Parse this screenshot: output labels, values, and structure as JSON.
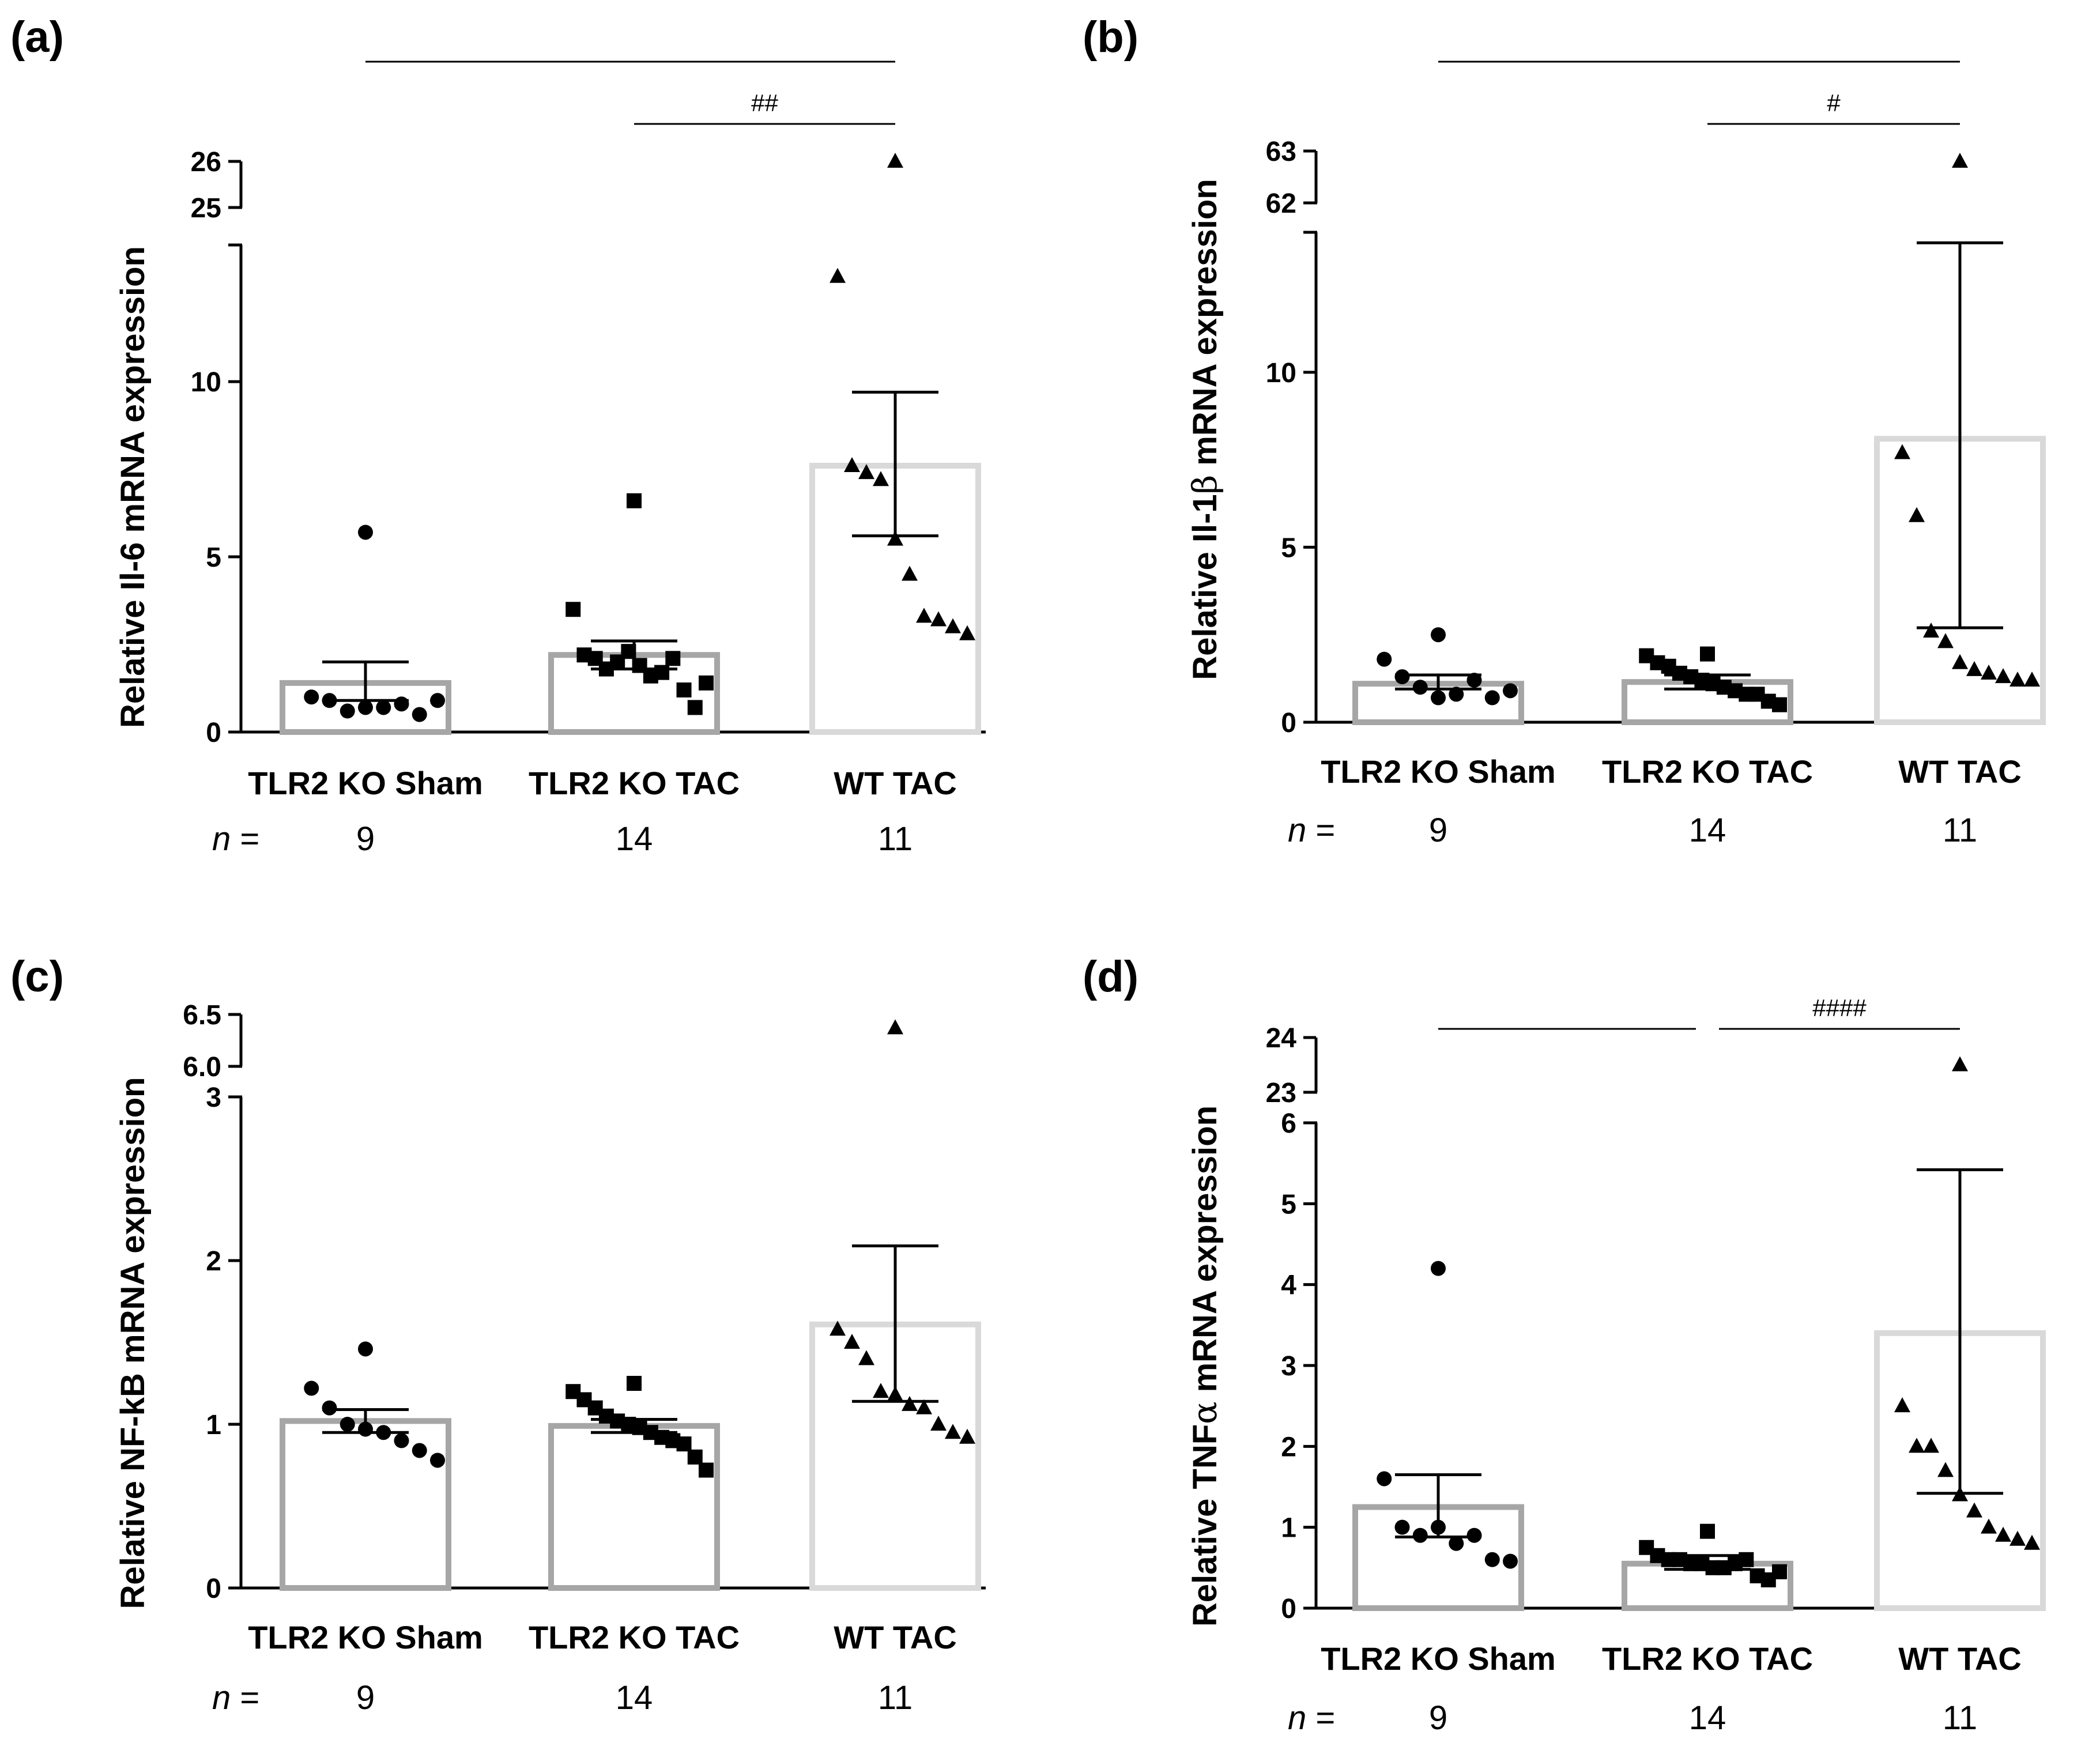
{
  "n_label": "n",
  "n_suffix": "=",
  "chart_data": [
    {
      "panel": "(a)",
      "type": "bar",
      "ylabel_parts": [
        {
          "t": "Relative Il-6 mRNA expression",
          "serif": false
        }
      ],
      "categories": [
        "TLR2 KO Sham",
        "TLR2 KO TAC",
        "WT TAC"
      ],
      "n": [
        "9",
        "14",
        "11"
      ],
      "bar_colors": [
        "#a6a6a6",
        "#a6a6a6",
        "#d9d9d9"
      ],
      "markers": [
        "circle",
        "square",
        "triangle"
      ],
      "lower_axis": {
        "range": [
          0,
          13.9
        ],
        "ticks": [
          0,
          5,
          10
        ],
        "tick_labels": [
          "0",
          "5",
          "10"
        ]
      },
      "upper_axis": {
        "range": [
          25,
          26
        ],
        "ticks": [
          25,
          26
        ],
        "tick_labels": [
          "25",
          "26"
        ]
      },
      "bars": [
        1.4,
        2.2,
        7.6
      ],
      "err_upper": [
        2.0,
        2.6,
        9.7
      ],
      "err_lower": [
        0.9,
        1.8,
        5.6
      ],
      "points": [
        [
          5.7,
          1.0,
          0.9,
          0.6,
          0.7,
          0.7,
          0.8,
          0.5,
          0.9
        ],
        [
          6.6,
          3.5,
          2.2,
          2.1,
          1.8,
          2.0,
          2.3,
          1.9,
          1.6,
          1.7,
          2.1,
          1.2,
          0.7,
          1.4
        ],
        [
          26.0,
          13.0,
          7.6,
          7.4,
          7.2,
          5.5,
          4.5,
          3.3,
          3.2,
          3.0,
          2.8
        ]
      ],
      "significance": [
        {
          "from": 0,
          "to": 2,
          "label": ""
        },
        {
          "from": 1,
          "to": 2,
          "label": "##"
        }
      ]
    },
    {
      "panel": "(b)",
      "type": "bar",
      "ylabel_parts": [
        {
          "t": "Relative Il-1",
          "serif": false
        },
        {
          "t": "β",
          "serif": true
        },
        {
          "t": " mRNA expression",
          "serif": false
        }
      ],
      "categories": [
        "TLR2 KO Sham",
        "TLR2 KO TAC",
        "WT TAC"
      ],
      "n": [
        "9",
        "14",
        "11"
      ],
      "bar_colors": [
        "#a6a6a6",
        "#a6a6a6",
        "#d9d9d9"
      ],
      "markers": [
        "circle",
        "square",
        "triangle"
      ],
      "lower_axis": {
        "range": [
          0,
          14.0
        ],
        "ticks": [
          0,
          5,
          10
        ],
        "tick_labels": [
          "0",
          "5",
          "10"
        ]
      },
      "upper_axis": {
        "range": [
          62,
          63
        ],
        "ticks": [
          62,
          63
        ],
        "tick_labels": [
          "62",
          "63"
        ]
      },
      "bars": [
        1.1,
        1.15,
        8.1
      ],
      "err_upper": [
        1.35,
        1.35,
        13.7
      ],
      "err_lower": [
        0.95,
        0.95,
        2.7
      ],
      "points": [
        [
          2.5,
          1.8,
          1.3,
          1.0,
          0.7,
          0.8,
          1.2,
          0.7,
          0.9
        ],
        [
          1.95,
          1.9,
          1.7,
          1.6,
          1.4,
          1.3,
          1.2,
          1.1,
          1.0,
          0.9,
          0.8,
          0.8,
          0.6,
          0.5
        ],
        [
          62.8,
          7.7,
          5.9,
          2.6,
          2.3,
          1.7,
          1.5,
          1.4,
          1.3,
          1.2,
          1.2
        ]
      ],
      "significance": [
        {
          "from": 0,
          "to": 2,
          "label": ""
        },
        {
          "from": 1,
          "to": 2,
          "label": "#"
        }
      ]
    },
    {
      "panel": "(c)",
      "type": "bar",
      "ylabel_parts": [
        {
          "t": "Relative NF-kB mRNA expression",
          "serif": false
        }
      ],
      "categories": [
        "TLR2 KO Sham",
        "TLR2 KO TAC",
        "WT TAC"
      ],
      "n": [
        "9",
        "14",
        "11"
      ],
      "bar_colors": [
        "#a6a6a6",
        "#a6a6a6",
        "#d9d9d9"
      ],
      "markers": [
        "circle",
        "square",
        "triangle"
      ],
      "lower_axis": {
        "range": [
          0,
          3
        ],
        "ticks": [
          0,
          1,
          2,
          3
        ],
        "tick_labels": [
          "0",
          "1",
          "2",
          "3"
        ]
      },
      "upper_axis": {
        "range": [
          6.0,
          6.5
        ],
        "ticks": [
          6.0,
          6.5
        ],
        "tick_labels": [
          "6.0",
          "6.5"
        ]
      },
      "bars": [
        1.02,
        0.99,
        1.61
      ],
      "err_upper": [
        1.09,
        1.03,
        2.09
      ],
      "err_lower": [
        0.95,
        0.95,
        1.14
      ],
      "points": [
        [
          1.46,
          1.22,
          1.1,
          1.0,
          0.97,
          0.95,
          0.9,
          0.84,
          0.78
        ],
        [
          1.25,
          1.2,
          1.15,
          1.1,
          1.05,
          1.02,
          1.0,
          0.98,
          0.95,
          0.92,
          0.9,
          0.88,
          0.8,
          0.72
        ],
        [
          6.37,
          1.58,
          1.5,
          1.4,
          1.2,
          1.18,
          1.12,
          1.1,
          1.0,
          0.95,
          0.92
        ]
      ],
      "significance": []
    },
    {
      "panel": "(d)",
      "type": "bar",
      "ylabel_parts": [
        {
          "t": "Relative TNF",
          "serif": false
        },
        {
          "t": "α",
          "serif": true
        },
        {
          "t": " mRNA expression",
          "serif": false
        }
      ],
      "categories": [
        "TLR2 KO Sham",
        "TLR2 KO TAC",
        "WT TAC"
      ],
      "n": [
        "9",
        "14",
        "11"
      ],
      "bar_colors": [
        "#a6a6a6",
        "#a6a6a6",
        "#d9d9d9"
      ],
      "markers": [
        "circle",
        "square",
        "triangle"
      ],
      "lower_axis": {
        "range": [
          0,
          6
        ],
        "ticks": [
          0,
          1,
          2,
          3,
          4,
          5,
          6
        ],
        "tick_labels": [
          "0",
          "1",
          "2",
          "3",
          "4",
          "5",
          "6"
        ]
      },
      "upper_axis": {
        "range": [
          23,
          24
        ],
        "ticks": [
          23,
          24
        ],
        "tick_labels": [
          "23",
          "24"
        ]
      },
      "bars": [
        1.25,
        0.55,
        3.4
      ],
      "err_upper": [
        1.65,
        0.65,
        5.42
      ],
      "err_lower": [
        0.88,
        0.48,
        1.42
      ],
      "points": [
        [
          4.2,
          1.6,
          1.0,
          0.9,
          1.0,
          0.8,
          0.9,
          0.6,
          0.58
        ],
        [
          0.95,
          0.75,
          0.65,
          0.6,
          0.6,
          0.55,
          0.55,
          0.5,
          0.5,
          0.55,
          0.6,
          0.4,
          0.35,
          0.45
        ],
        [
          23.5,
          2.5,
          2.0,
          2.0,
          1.7,
          1.4,
          1.2,
          1.0,
          0.9,
          0.85,
          0.8
        ]
      ],
      "significance": [
        {
          "from": 0,
          "to": 1,
          "label": ""
        },
        {
          "from": 1,
          "to": 2,
          "label": "####"
        }
      ]
    }
  ]
}
